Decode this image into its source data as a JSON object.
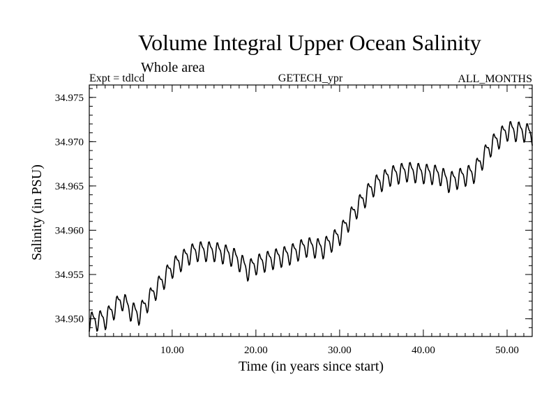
{
  "chart_data": {
    "type": "line",
    "title": "Volume Integral Upper Ocean Salinity",
    "subtitle": "Whole area",
    "header_left": "Expt = tdlcd",
    "header_center": "GETECH_ypr",
    "header_right": "ALL_MONTHS",
    "xlabel": "Time (in years since start)",
    "ylabel": "Salinity (in PSU)",
    "xlim": [
      0.1,
      53
    ],
    "ylim": [
      34.948,
      34.9764
    ],
    "xticks": [
      10,
      20,
      30,
      40,
      50
    ],
    "xtick_labels": [
      "10.00",
      "20.00",
      "30.00",
      "40.00",
      "50.00"
    ],
    "yticks": [
      34.95,
      34.955,
      34.96,
      34.965,
      34.97,
      34.975
    ],
    "ytick_labels": [
      "34.950",
      "34.955",
      "34.960",
      "34.965",
      "34.970",
      "34.975"
    ],
    "seasonal_amplitude": 0.0013,
    "samples_per_year": 12,
    "series": [
      {
        "name": "Salinity",
        "color": "#000000",
        "baseline_x": [
          0,
          2,
          4,
          5,
          6,
          8,
          10,
          12,
          13,
          15,
          17,
          18,
          19,
          20,
          22,
          24,
          26,
          28,
          30,
          32,
          34,
          36,
          38,
          40,
          42,
          43,
          45,
          46,
          48,
          50,
          52,
          53
        ],
        "baseline_y": [
          34.9497,
          34.95,
          34.9522,
          34.951,
          34.9505,
          34.9533,
          34.9558,
          34.9573,
          34.9577,
          34.9577,
          34.9572,
          34.9566,
          34.9555,
          34.9562,
          34.9568,
          34.9573,
          34.9582,
          34.958,
          34.9595,
          34.9625,
          34.965,
          34.9662,
          34.9667,
          34.9665,
          34.9663,
          34.9655,
          34.9662,
          34.9665,
          34.9695,
          34.9713,
          34.9712,
          34.9708
        ]
      }
    ]
  }
}
